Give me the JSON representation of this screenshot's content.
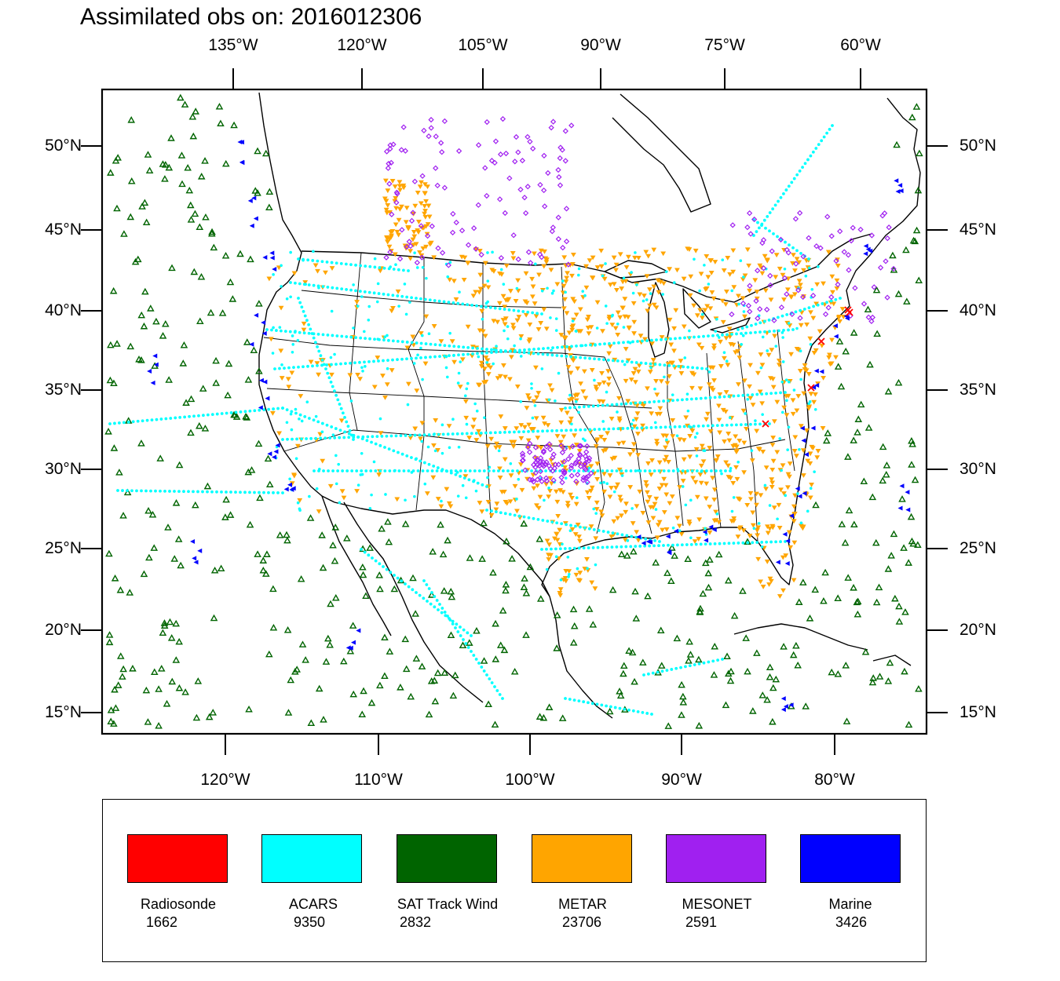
{
  "title": "Assimilated obs on: 2016012306",
  "axes": {
    "top": [
      "135°W",
      "120°W",
      "105°W",
      "90°W",
      "75°W",
      "60°W"
    ],
    "bottom": [
      "120°W",
      "110°W",
      "100°W",
      "90°W",
      "80°W"
    ],
    "left": [
      "50°N",
      "45°N",
      "40°N",
      "35°N",
      "30°N",
      "25°N",
      "20°N",
      "15°N"
    ],
    "right": [
      "50°N",
      "45°N",
      "40°N",
      "35°N",
      "30°N",
      "25°N",
      "20°N",
      "15°N"
    ]
  },
  "legend": [
    {
      "name": "Radiosonde",
      "count": "1662",
      "color": "#ff0000"
    },
    {
      "name": "ACARS",
      "count": "9350",
      "color": "#00ffff"
    },
    {
      "name": "SAT Track Wind",
      "count": "2832",
      "color": "#006400"
    },
    {
      "name": "METAR",
      "count": "23706",
      "color": "#ffa500"
    },
    {
      "name": "MESONET",
      "count": "2591",
      "color": "#a020f0"
    },
    {
      "name": "Marine",
      "count": "3426",
      "color": "#0000ff"
    }
  ]
}
